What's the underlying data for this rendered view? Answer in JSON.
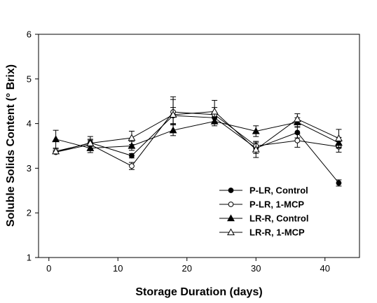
{
  "chart_data": {
    "type": "line",
    "xlabel": "Storage Duration (days)",
    "ylabel": "Soluble Solids Content (° Brix)",
    "xlim": [
      -1.5,
      45
    ],
    "ylim": [
      1,
      6
    ],
    "xticks": [
      0,
      10,
      20,
      30,
      40
    ],
    "yticks": [
      1,
      2,
      3,
      4,
      5,
      6
    ],
    "legend_position": "bottom-right",
    "series": [
      {
        "name": "P-LR, Control",
        "marker": "filled-circle",
        "x": [
          1,
          6,
          12,
          18,
          24,
          30,
          36,
          42
        ],
        "y": [
          3.36,
          3.57,
          3.28,
          4.18,
          4.13,
          3.45,
          3.8,
          2.67
        ],
        "err": [
          0.03,
          0.08,
          0.05,
          0.18,
          0.12,
          0.12,
          0.12,
          0.07
        ]
      },
      {
        "name": "P-LR, 1-MCP",
        "marker": "open-circle",
        "x": [
          1,
          6,
          12,
          18,
          24,
          30,
          36,
          42
        ],
        "y": [
          3.36,
          3.53,
          3.05,
          4.26,
          4.2,
          3.5,
          3.62,
          3.48
        ],
        "err": [
          0.03,
          0.1,
          0.08,
          0.28,
          0.16,
          0.1,
          0.15,
          0.12
        ]
      },
      {
        "name": "LR-R, Control",
        "marker": "filled-triangle",
        "x": [
          1,
          6,
          12,
          18,
          24,
          30,
          36,
          42
        ],
        "y": [
          3.65,
          3.45,
          3.5,
          3.85,
          4.05,
          3.83,
          4.03,
          3.57
        ],
        "err": [
          0.2,
          0.1,
          0.1,
          0.12,
          0.1,
          0.12,
          0.1,
          0.12
        ]
      },
      {
        "name": "LR-R, 1-MCP",
        "marker": "open-triangle",
        "x": [
          1,
          6,
          12,
          18,
          24,
          30,
          36,
          42
        ],
        "y": [
          3.38,
          3.56,
          3.68,
          4.2,
          4.27,
          3.42,
          4.1,
          3.67
        ],
        "err": [
          0.05,
          0.15,
          0.15,
          0.4,
          0.25,
          0.18,
          0.12,
          0.2
        ]
      }
    ]
  }
}
